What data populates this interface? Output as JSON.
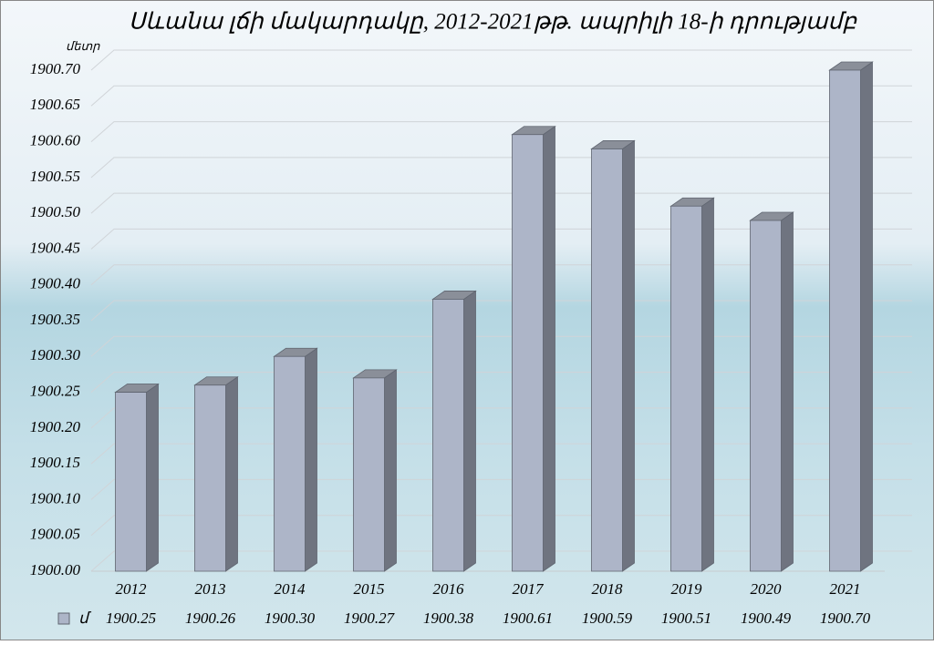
{
  "chart_data": {
    "type": "bar3d",
    "title": "Սևանա լճի մակարդակը, 2012-2021թթ. ապրիլի 18-ի դրությամբ",
    "y_label": "մետր",
    "categories": [
      "2012",
      "2013",
      "2014",
      "2015",
      "2016",
      "2017",
      "2018",
      "2019",
      "2020",
      "2021"
    ],
    "series": [
      {
        "name": "մ",
        "color": "#adb5c8",
        "values": [
          1900.25,
          1900.26,
          1900.3,
          1900.27,
          1900.38,
          1900.61,
          1900.59,
          1900.51,
          1900.49,
          1900.7
        ],
        "value_labels": [
          "1900.25",
          "1900.26",
          "1900.30",
          "1900.27",
          "1900.38",
          "1900.61",
          "1900.59",
          "1900.51",
          "1900.49",
          "1900.70"
        ]
      }
    ],
    "ylim": [
      1900,
      1900.7
    ],
    "yticks": [
      {
        "value": 1900,
        "label": "1900.00"
      },
      1900.05,
      {
        "value": 1900.1,
        "label": "1900.10"
      },
      1900.15,
      {
        "value": 1900.2,
        "label": "1900.20"
      },
      1900.25,
      {
        "value": 1900.3,
        "label": "1900.30"
      },
      1900.35,
      {
        "value": 1900.4,
        "label": "1900.40"
      },
      1900.45,
      {
        "value": 1900.5,
        "label": "1900.50"
      },
      1900.55,
      {
        "value": 1900.6,
        "label": "1900.60"
      },
      1900.65,
      {
        "value": 1900.7,
        "label": "1900.70"
      }
    ],
    "grid": true,
    "data_table": true
  }
}
